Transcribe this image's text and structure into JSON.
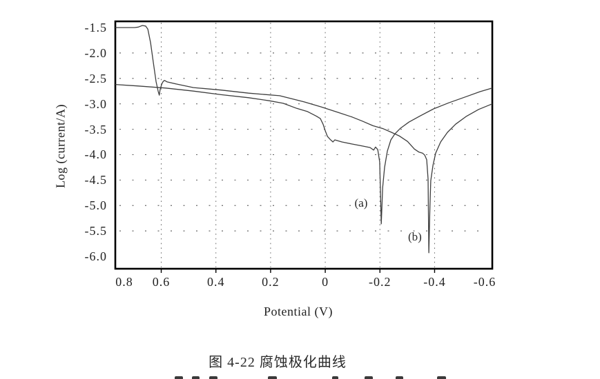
{
  "figure": {
    "caption": "图 4-22  腐蚀极化曲线"
  },
  "chart_data": {
    "type": "line",
    "title": "",
    "xlabel": "Potential (V)",
    "ylabel": "Log (current/A)",
    "x_axis_reversed": true,
    "x_range": [
      0.768,
      -0.611
    ],
    "y_range": [
      -1.378,
      -6.244
    ],
    "x_tick_values": [
      0.8,
      0.6,
      0.4,
      0.2,
      0,
      -0.2,
      -0.4,
      -0.6
    ],
    "x_tick_labels": [
      "0.8",
      "0.6",
      "0.4",
      "0.2",
      "0",
      "-0.2",
      "-0.4",
      "-0.6"
    ],
    "y_tick_values": [
      -1.5,
      -2.0,
      -2.5,
      -3.0,
      -3.5,
      -4.0,
      -4.5,
      -5.0,
      -5.5,
      -6.0
    ],
    "y_tick_labels": [
      "-1.5",
      "-2.0",
      "-2.5",
      "-3.0",
      "-3.5",
      "-4.0",
      "-4.5",
      "-5.0",
      "-5.5",
      "-6.0"
    ],
    "x_gridline_values": [
      0.6,
      0.4,
      0.2,
      0,
      -0.2,
      -0.4
    ],
    "y_gridline_values": [
      -2.0,
      -2.5,
      -3.0,
      -3.5,
      -4.0,
      -4.5,
      -5.0,
      -5.5
    ],
    "grid_style": "dotted",
    "legend": "none",
    "colors": {
      "curve": "#3d3d3d",
      "grid": "#666666",
      "border": "#000000",
      "text": "#1f1f1f"
    },
    "series": [
      {
        "name": "curve-a",
        "label": "(a)",
        "corrosion_potential_V": -0.205,
        "points": [
          [
            0.768,
            -2.62
          ],
          [
            0.684,
            -2.65
          ],
          [
            0.583,
            -2.69
          ],
          [
            0.482,
            -2.75
          ],
          [
            0.381,
            -2.82
          ],
          [
            0.28,
            -2.88
          ],
          [
            0.205,
            -2.94
          ],
          [
            0.154,
            -2.99
          ],
          [
            0.104,
            -3.09
          ],
          [
            0.066,
            -3.15
          ],
          [
            0.033,
            -3.24
          ],
          [
            0.018,
            -3.29
          ],
          [
            0.008,
            -3.4
          ],
          [
            0.0,
            -3.53
          ],
          [
            -0.008,
            -3.64
          ],
          [
            -0.018,
            -3.7
          ],
          [
            -0.028,
            -3.75
          ],
          [
            -0.035,
            -3.71
          ],
          [
            -0.061,
            -3.75
          ],
          [
            -0.098,
            -3.79
          ],
          [
            -0.136,
            -3.83
          ],
          [
            -0.164,
            -3.86
          ],
          [
            -0.177,
            -3.91
          ],
          [
            -0.184,
            -3.85
          ],
          [
            -0.192,
            -3.9
          ],
          [
            -0.199,
            -4.14
          ],
          [
            -0.205,
            -5.36
          ],
          [
            -0.21,
            -4.65
          ],
          [
            -0.217,
            -4.25
          ],
          [
            -0.227,
            -3.93
          ],
          [
            -0.24,
            -3.71
          ],
          [
            -0.255,
            -3.59
          ],
          [
            -0.275,
            -3.48
          ],
          [
            -0.306,
            -3.36
          ],
          [
            -0.346,
            -3.24
          ],
          [
            -0.396,
            -3.1
          ],
          [
            -0.452,
            -2.98
          ],
          [
            -0.515,
            -2.86
          ],
          [
            -0.566,
            -2.76
          ],
          [
            -0.611,
            -2.69
          ]
        ]
      },
      {
        "name": "curve-b",
        "label": "(b)",
        "corrosion_potential_V": -0.379,
        "points": [
          [
            0.768,
            -1.5
          ],
          [
            0.697,
            -1.5
          ],
          [
            0.684,
            -1.49
          ],
          [
            0.669,
            -1.46
          ],
          [
            0.657,
            -1.47
          ],
          [
            0.649,
            -1.53
          ],
          [
            0.639,
            -1.8
          ],
          [
            0.629,
            -2.18
          ],
          [
            0.619,
            -2.56
          ],
          [
            0.611,
            -2.76
          ],
          [
            0.607,
            -2.83
          ],
          [
            0.604,
            -2.72
          ],
          [
            0.598,
            -2.61
          ],
          [
            0.593,
            -2.56
          ],
          [
            0.588,
            -2.54
          ],
          [
            0.578,
            -2.57
          ],
          [
            0.545,
            -2.61
          ],
          [
            0.482,
            -2.68
          ],
          [
            0.381,
            -2.73
          ],
          [
            0.28,
            -2.79
          ],
          [
            0.167,
            -2.84
          ],
          [
            0.078,
            -2.96
          ],
          [
            0.015,
            -3.06
          ],
          [
            -0.048,
            -3.17
          ],
          [
            -0.098,
            -3.26
          ],
          [
            -0.136,
            -3.34
          ],
          [
            -0.174,
            -3.43
          ],
          [
            -0.212,
            -3.49
          ],
          [
            -0.242,
            -3.56
          ],
          [
            -0.27,
            -3.63
          ],
          [
            -0.301,
            -3.74
          ],
          [
            -0.326,
            -3.89
          ],
          [
            -0.343,
            -3.95
          ],
          [
            -0.356,
            -3.97
          ],
          [
            -0.364,
            -4.01
          ],
          [
            -0.371,
            -4.1
          ],
          [
            -0.376,
            -4.48
          ],
          [
            -0.379,
            -5.93
          ],
          [
            -0.383,
            -5.02
          ],
          [
            -0.386,
            -4.51
          ],
          [
            -0.394,
            -4.21
          ],
          [
            -0.404,
            -3.97
          ],
          [
            -0.422,
            -3.75
          ],
          [
            -0.447,
            -3.56
          ],
          [
            -0.477,
            -3.4
          ],
          [
            -0.515,
            -3.25
          ],
          [
            -0.561,
            -3.11
          ],
          [
            -0.611,
            -3.0
          ]
        ]
      }
    ],
    "annotations": [
      {
        "text": "(a)",
        "x": -0.131,
        "y": -4.96
      },
      {
        "text": "(b)",
        "x": -0.328,
        "y": -5.62
      }
    ],
    "bottom_clipped_marks": [
      [
        253,
        12
      ],
      [
        278,
        11
      ],
      [
        303,
        12
      ],
      [
        388,
        13
      ],
      [
        481,
        9
      ],
      [
        528,
        12
      ],
      [
        573,
        11
      ],
      [
        633,
        13
      ]
    ]
  }
}
